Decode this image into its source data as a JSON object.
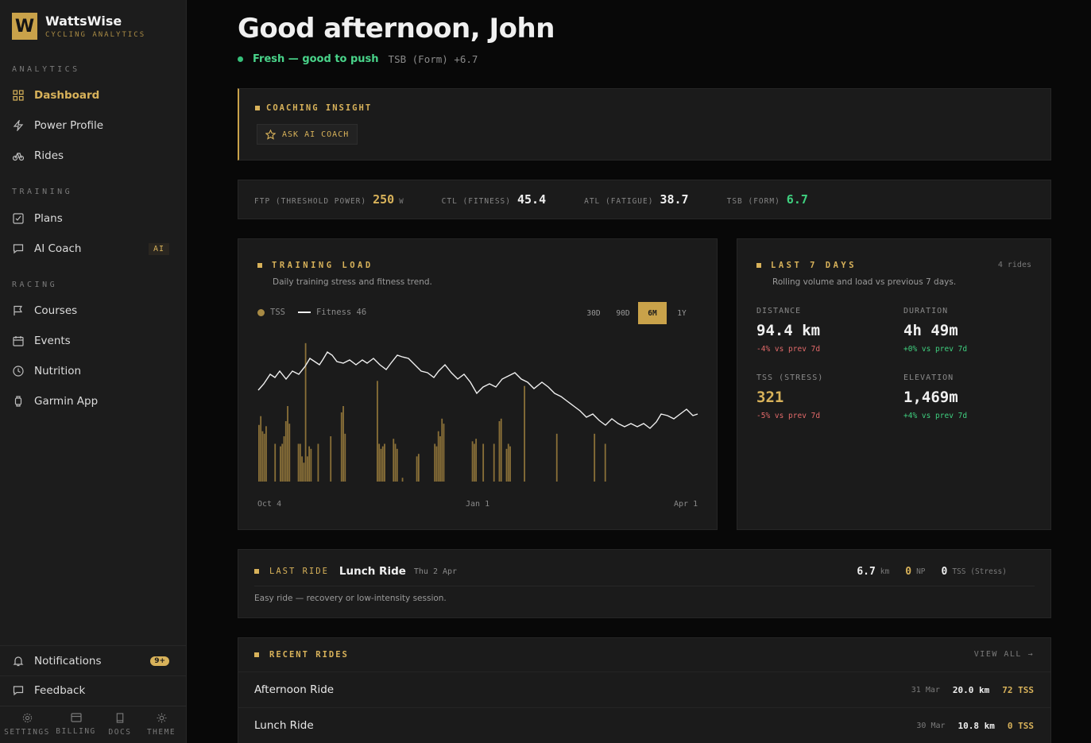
{
  "brand": {
    "logo_letter": "W",
    "name": "WattsWise",
    "sub": "CYCLING ANALYTICS"
  },
  "sidebar": {
    "sections": [
      {
        "label": "ANALYTICS"
      },
      {
        "label": "TRAINING"
      },
      {
        "label": "RACING"
      }
    ],
    "items": [
      {
        "label": "Dashboard",
        "icon": "grid-icon"
      },
      {
        "label": "Power Profile",
        "icon": "bolt-icon"
      },
      {
        "label": "Rides",
        "icon": "bike-icon"
      },
      {
        "label": "Plans",
        "icon": "checklist-icon"
      },
      {
        "label": "AI Coach",
        "icon": "chat-icon",
        "badge": "AI"
      },
      {
        "label": "Courses",
        "icon": "flag-icon"
      },
      {
        "label": "Events",
        "icon": "calendar-icon"
      },
      {
        "label": "Nutrition",
        "icon": "clock-icon"
      },
      {
        "label": "Garmin App",
        "icon": "watch-icon"
      }
    ],
    "notifications": {
      "label": "Notifications",
      "badge": "9+"
    },
    "feedback": {
      "label": "Feedback"
    },
    "bottom": [
      "SETTINGS",
      "BILLING",
      "DOCS",
      "THEME"
    ]
  },
  "header": {
    "greeting": "Good afternoon, John",
    "status": "Fresh — good to push",
    "tsb": "TSB (Form) +6.7"
  },
  "insight": {
    "title": "COACHING INSIGHT",
    "ask_label": "ASK AI COACH"
  },
  "metrics": [
    {
      "label": "FTP (THRESHOLD POWER)",
      "value": "250",
      "unit": "W",
      "color": "#d8b25a"
    },
    {
      "label": "CTL (FITNESS)",
      "value": "45.4",
      "unit": "",
      "color": "#f0f0f0"
    },
    {
      "label": "ATL (FATIGUE)",
      "value": "38.7",
      "unit": "",
      "color": "#f0f0f0"
    },
    {
      "label": "TSB (FORM)",
      "value": "6.7",
      "unit": "",
      "color": "#3fd07f"
    }
  ],
  "training_load": {
    "title": "TRAINING LOAD",
    "subtitle": "Daily training stress and fitness trend.",
    "legend_tss": "TSS",
    "legend_fitness": "Fitness 46",
    "ranges": [
      "30D",
      "90D",
      "6M",
      "1Y"
    ],
    "selected_range": "6M",
    "x_labels": [
      "Oct 4",
      "Jan 1",
      "Apr 1"
    ]
  },
  "chart_data": {
    "type": "bar",
    "x_ticks": [
      "Oct 4",
      "Jan 1",
      "Apr 1"
    ],
    "series": [
      {
        "name": "TSS",
        "values": [
          45,
          52,
          40,
          38,
          44,
          0,
          0,
          0,
          0,
          30,
          0,
          0,
          28,
          30,
          36,
          48,
          60,
          46,
          0,
          0,
          0,
          0,
          30,
          30,
          20,
          15,
          110,
          20,
          28,
          26,
          0,
          0,
          0,
          30,
          0,
          0,
          0,
          0,
          0,
          0,
          36,
          0,
          0,
          0,
          0,
          0,
          55,
          60,
          38,
          0,
          0,
          0,
          0,
          0,
          0,
          0,
          0,
          0,
          0,
          0,
          0,
          0,
          0,
          0,
          0,
          0,
          80,
          30,
          26,
          28,
          30,
          0,
          0,
          0,
          0,
          34,
          30,
          26,
          0,
          0,
          3,
          0,
          0,
          0,
          0,
          0,
          0,
          0,
          20,
          22,
          0,
          0,
          0,
          0,
          0,
          0,
          0,
          0,
          30,
          28,
          40,
          36,
          50,
          46,
          0,
          0,
          0,
          0,
          0,
          0,
          0,
          0,
          0,
          0,
          0,
          0,
          0,
          0,
          0,
          32,
          30,
          34,
          0,
          0,
          0,
          30,
          0,
          0,
          0,
          0,
          0,
          30,
          0,
          0,
          48,
          50,
          0,
          0,
          26,
          30,
          28,
          0,
          0,
          0,
          0,
          0,
          0,
          0,
          76,
          0,
          0,
          0,
          0,
          0,
          0,
          0,
          0,
          0,
          0,
          0,
          0,
          0,
          0,
          0,
          0,
          0,
          38,
          0,
          0,
          0,
          0,
          0,
          0,
          0,
          0,
          0,
          0,
          0,
          0,
          0,
          0,
          0,
          0,
          0,
          0,
          0,
          0,
          38,
          0,
          0,
          0,
          0,
          0,
          30,
          0,
          0,
          0,
          0,
          0,
          0,
          0,
          0,
          0,
          0,
          0,
          0,
          0,
          0,
          0,
          0,
          0,
          0,
          0,
          0,
          0,
          0,
          0,
          0,
          0,
          0,
          0,
          0,
          0,
          0,
          0,
          0,
          0,
          0,
          0,
          0,
          0,
          0,
          0,
          0,
          0,
          0,
          0,
          0,
          0,
          0,
          0,
          0,
          0,
          0,
          0,
          0,
          0,
          0
        ]
      },
      {
        "name": "Fitness",
        "values": []
      }
    ]
  },
  "last7": {
    "title": "LAST 7 DAYS",
    "count": "4 rides",
    "subtitle": "Rolling volume and load vs previous 7 days.",
    "stats": [
      {
        "label": "DISTANCE",
        "value": "94.4 km",
        "change": "-4% vs prev 7d",
        "value_color": "#f0f0f0",
        "change_color": "#e26a6a"
      },
      {
        "label": "DURATION",
        "value": "4h 49m",
        "change": "+0% vs prev 7d",
        "value_color": "#f0f0f0",
        "change_color": "#3fd07f"
      },
      {
        "label": "TSS (STRESS)",
        "value": "321",
        "change": "-5% vs prev 7d",
        "value_color": "#d8b25a",
        "change_color": "#e26a6a"
      },
      {
        "label": "ELEVATION",
        "value": "1,469m",
        "change": "+4% vs prev 7d",
        "value_color": "#f0f0f0",
        "change_color": "#3fd07f"
      }
    ]
  },
  "last_ride": {
    "title": "LAST RIDE",
    "name": "Lunch Ride",
    "date": "Thu 2 Apr",
    "distance": "6.7",
    "distance_unit": "km",
    "np": "0",
    "np_unit": "NP",
    "tss": "0",
    "tss_unit": "TSS (Stress)",
    "description": "Easy ride — recovery or low-intensity session."
  },
  "recent": {
    "title": "RECENT RIDES",
    "view_all": "VIEW ALL →",
    "rows": [
      {
        "name": "Afternoon Ride",
        "date": "31 Mar",
        "distance": "20.0 km",
        "tss": "72 TSS"
      },
      {
        "name": "Lunch Ride",
        "date": "30 Mar",
        "distance": "10.8 km",
        "tss": "0 TSS"
      }
    ]
  }
}
